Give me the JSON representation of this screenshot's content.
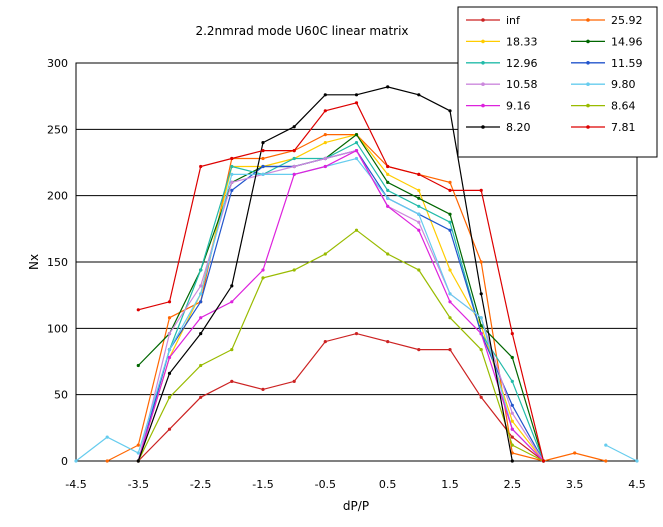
{
  "chart_data": {
    "type": "line",
    "title": "2.2nmrad mode U60C linear matrix",
    "xlabel": "dP/P",
    "ylabel": "Nx",
    "xlim": [
      -4.5,
      4.5
    ],
    "ylim": [
      0,
      300
    ],
    "xticks": [
      "-4.5",
      "-3.5",
      "-2.5",
      "-1.5",
      "-0.5",
      "0.5",
      "1.5",
      "2.5",
      "3.5",
      "4.5"
    ],
    "yticks": [
      "0",
      "50",
      "100",
      "150",
      "200",
      "250",
      "300"
    ],
    "x": [
      -4.5,
      -4,
      -3.5,
      -3,
      -2.5,
      -2,
      -1.5,
      -1,
      -0.5,
      0,
      0.5,
      1,
      1.5,
      2,
      2.5,
      3,
      3.5,
      4,
      4.5
    ],
    "legend_position": "top-right",
    "series": [
      {
        "name": "inf",
        "color": "#cc2222",
        "values": [
          null,
          null,
          0,
          24,
          48,
          60,
          54,
          60,
          90,
          96,
          90,
          84,
          84,
          48,
          18,
          0,
          null,
          null,
          null
        ]
      },
      {
        "name": "25.92",
        "color": "#ff6600",
        "values": [
          null,
          0,
          12,
          108,
          120,
          228,
          228,
          234,
          246,
          246,
          222,
          216,
          210,
          150,
          6,
          0,
          6,
          0,
          null
        ]
      },
      {
        "name": "18.33",
        "color": "#ffcc00",
        "values": [
          null,
          null,
          0,
          78,
          126,
          222,
          222,
          228,
          240,
          246,
          216,
          204,
          144,
          102,
          30,
          0,
          null,
          null,
          null
        ]
      },
      {
        "name": "14.96",
        "color": "#006600",
        "values": [
          null,
          null,
          72,
          96,
          144,
          210,
          222,
          222,
          228,
          246,
          210,
          198,
          186,
          102,
          78,
          0,
          null,
          null,
          null
        ]
      },
      {
        "name": "12.96",
        "color": "#22bbaa",
        "values": [
          null,
          null,
          0,
          84,
          144,
          222,
          216,
          228,
          228,
          240,
          204,
          192,
          180,
          96,
          60,
          0,
          null,
          null,
          null
        ]
      },
      {
        "name": "11.59",
        "color": "#2255cc",
        "values": [
          null,
          null,
          0,
          84,
          120,
          204,
          222,
          222,
          228,
          234,
          198,
          186,
          174,
          96,
          42,
          0,
          null,
          null,
          null
        ]
      },
      {
        "name": "10.58",
        "color": "#cc88dd",
        "values": [
          null,
          null,
          0,
          96,
          132,
          210,
          216,
          222,
          228,
          234,
          192,
          180,
          126,
          108,
          36,
          0,
          null,
          null,
          null
        ]
      },
      {
        "name": "9.80",
        "color": "#66ccee",
        "values": [
          0,
          18,
          6,
          84,
          126,
          216,
          216,
          216,
          222,
          228,
          198,
          186,
          126,
          108,
          24,
          0,
          null,
          12,
          0
        ]
      },
      {
        "name": "9.16",
        "color": "#dd22dd",
        "values": [
          null,
          null,
          0,
          78,
          108,
          120,
          144,
          216,
          222,
          234,
          192,
          174,
          120,
          96,
          24,
          0,
          null,
          null,
          null
        ]
      },
      {
        "name": "8.64",
        "color": "#99bb00",
        "values": [
          null,
          null,
          0,
          48,
          72,
          84,
          138,
          144,
          156,
          174,
          156,
          144,
          108,
          84,
          12,
          0,
          null,
          null,
          null
        ]
      },
      {
        "name": "8.20",
        "color": "#000000",
        "values": [
          null,
          null,
          0,
          66,
          96,
          132,
          240,
          252,
          276,
          276,
          282,
          276,
          264,
          126,
          0,
          null,
          null,
          null,
          null
        ]
      },
      {
        "name": "7.81",
        "color": "#dd0000",
        "values": [
          null,
          null,
          114,
          120,
          222,
          228,
          234,
          234,
          264,
          270,
          222,
          216,
          204,
          204,
          96,
          0,
          null,
          null,
          null
        ]
      }
    ]
  }
}
